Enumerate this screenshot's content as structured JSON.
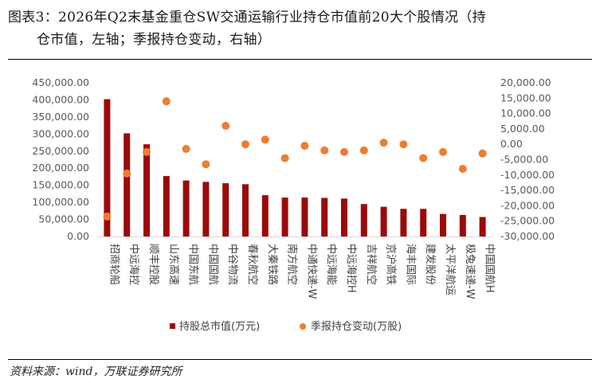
{
  "title_line1": "图表3：2026年Q2末基金重仓SW交通运输行业持仓市值前20大个股情况（持",
  "title_line2": "仓市值，左轴；季报持仓变动，右轴）",
  "source": "资料来源：wind，万联证券研究所",
  "colors": {
    "bar": "#9b0a0a",
    "scatter": "#ed7d31",
    "axis_text": "#595959"
  },
  "chart_data": {
    "type": "bar",
    "categories": [
      "招商轮船",
      "中远海控",
      "顺丰控股",
      "山东高速",
      "中国东航",
      "中国国航",
      "中谷物流",
      "春秋航空",
      "大秦铁路",
      "南方航空",
      "中通快递-W",
      "中远海能",
      "中远海控H",
      "吉祥航空",
      "京沪高铁",
      "海丰国际",
      "建发股份",
      "太平洋航运",
      "极兔速递-W",
      "中国国航H"
    ],
    "series": [
      {
        "name": "持股总市值(万元)",
        "type": "bar",
        "axis": "left",
        "values": [
          402000,
          302000,
          270000,
          177000,
          164000,
          160000,
          156000,
          153000,
          121000,
          114000,
          114000,
          113000,
          111000,
          95000,
          87000,
          81000,
          81000,
          66000,
          63000,
          57000
        ]
      },
      {
        "name": "季报持仓变动(万股)",
        "type": "scatter",
        "axis": "right",
        "values": [
          -23500,
          -9500,
          -2500,
          14000,
          -1500,
          -6500,
          6000,
          0,
          1500,
          -4500,
          -500,
          -2000,
          -2500,
          -2000,
          500,
          0,
          -4500,
          -2500,
          -8000,
          -3000
        ]
      }
    ],
    "y_left": {
      "min": 0,
      "max": 450000,
      "step": 50000,
      "tick_labels": [
        "0.00",
        "50,000.00",
        "100,000.00",
        "150,000.00",
        "200,000.00",
        "250,000.00",
        "300,000.00",
        "350,000.00",
        "400,000.00",
        "450,000.00"
      ]
    },
    "y_right": {
      "min": -30000,
      "max": 20000,
      "step": 5000,
      "tick_labels": [
        "-30,000.00",
        "-25,000.00",
        "-20,000.00",
        "-15,000.00",
        "-10,000.00",
        "-5,000.00",
        "0.00",
        "5,000.00",
        "10,000.00",
        "15,000.00",
        "20,000.00"
      ]
    },
    "grid": false,
    "legend_position": "bottom"
  }
}
